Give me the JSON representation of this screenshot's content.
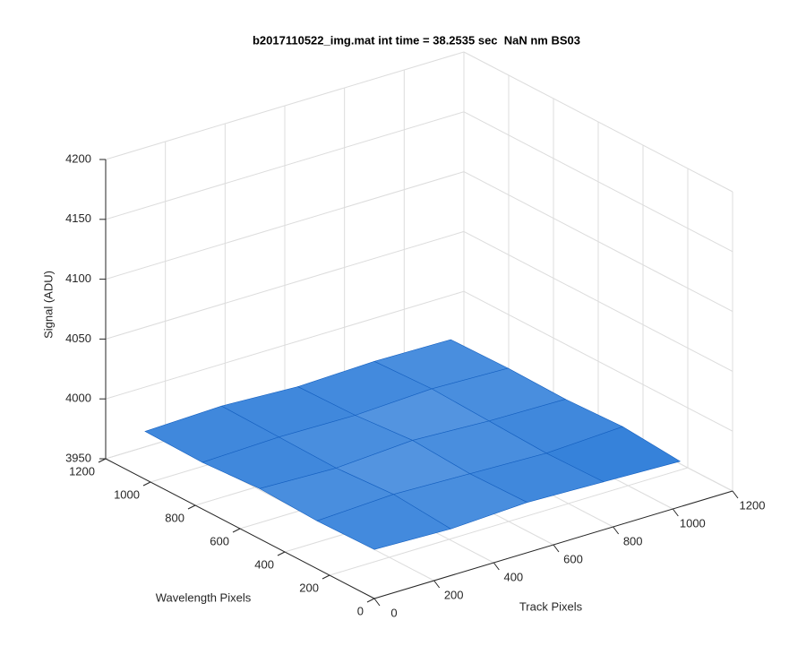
{
  "chart_data": {
    "type": "surface",
    "title": "b2017110522_img.mat int time = 38.2535 sec  NaN nm BS03",
    "x_label": "Track Pixels",
    "y_label": "Wavelength Pixels",
    "z_label": "Signal (ADU)",
    "x": [
      0,
      256,
      512,
      768,
      1024
    ],
    "y": [
      0,
      256,
      512,
      768,
      1024
    ],
    "z": [
      [
        3991,
        3989,
        3992,
        3990,
        3988
      ],
      [
        3990,
        3993,
        3991,
        3989,
        3992
      ],
      [
        3992,
        3990,
        3994,
        3991,
        3990
      ],
      [
        3989,
        3991,
        3990,
        3993,
        3991
      ],
      [
        3990,
        3992,
        3989,
        3991,
        3990
      ]
    ],
    "color": "#1f74d6",
    "xlim": [
      0,
      1200
    ],
    "xticks": [
      0,
      200,
      400,
      600,
      800,
      1000,
      1200
    ],
    "ylim": [
      0,
      1200
    ],
    "yticks": [
      0,
      200,
      400,
      600,
      800,
      1000,
      1200
    ],
    "zlim": [
      3950,
      4200
    ],
    "zticks": [
      3950,
      4000,
      4050,
      4100,
      4150,
      4200
    ],
    "grid": true
  }
}
